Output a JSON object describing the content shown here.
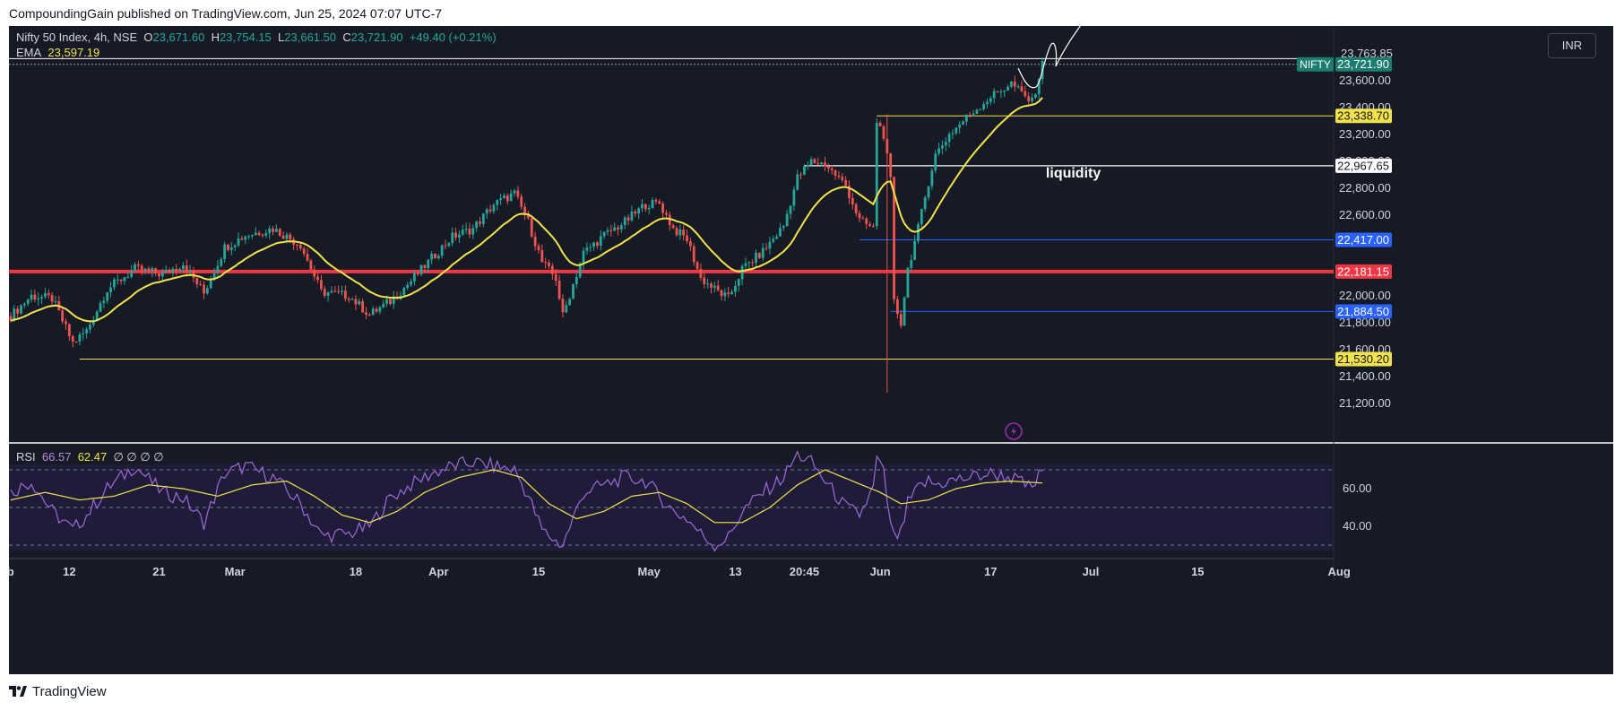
{
  "header": {
    "published": "CompoundingGain published on TradingView.com, Jun 25, 2024 07:07 UTC-7"
  },
  "legend": {
    "symbol": "Nifty 50 Index, 4h, NSE",
    "o_label": "O",
    "o_value": "23,671.60",
    "h_label": "H",
    "h_value": "23,754.15",
    "l_label": "L",
    "l_value": "23,661.50",
    "c_label": "C",
    "c_value": "23,721.90",
    "change": "+49.40 (+0.21%)",
    "ema_label": "EMA",
    "ema_value": "23,597.19"
  },
  "rsi_legend": {
    "label": "RSI",
    "rsi_value": "66.57",
    "ma_value": "62.47",
    "extra": "∅ ∅ ∅ ∅"
  },
  "currency": "INR",
  "footer": {
    "brand": "TradingView"
  },
  "colors": {
    "up": "#26a69a",
    "down": "#ef5350",
    "ema": "#f2e34c",
    "rsi": "#9c6ad8",
    "background": "#161a25",
    "key_line": "#f23645"
  },
  "chart_data": {
    "type": "candlestick",
    "title": "Nifty 50 Index, 4h, NSE",
    "ylim": [
      21100,
      23900
    ],
    "y_ticks": [
      21200,
      21400,
      21600,
      21800,
      22000,
      22200,
      22400,
      22600,
      22800,
      23000,
      23200,
      23400,
      23600
    ],
    "y_tick_labels": [
      "21,200.00",
      "21,400.00",
      "21,600.00",
      "21,800.00",
      "22,000.00",
      "22,200.00",
      "22,400.00",
      "22,600.00",
      "22,800.00",
      "23,000.00",
      "23,200.00",
      "23,400.00",
      "23,600.00"
    ],
    "top_partial_label": "23,763.85",
    "x_labels": [
      {
        "label": "eb",
        "bar": -1
      },
      {
        "label": "12",
        "bar": 17
      },
      {
        "label": "21",
        "bar": 43
      },
      {
        "label": "Mar",
        "bar": 65
      },
      {
        "label": "18",
        "bar": 100
      },
      {
        "label": "Apr",
        "bar": 124
      },
      {
        "label": "15",
        "bar": 153
      },
      {
        "label": "May",
        "bar": 185
      },
      {
        "label": "13",
        "bar": 210
      },
      {
        "label": "20:45",
        "bar": 230
      },
      {
        "label": "Jun",
        "bar": 252
      },
      {
        "label": "17",
        "bar": 284
      },
      {
        "label": "Jul",
        "bar": 313
      },
      {
        "label": "15",
        "bar": 344
      },
      {
        "label": "Aug",
        "bar": 385
      }
    ],
    "last_bar": 299,
    "horizontal_levels": [
      {
        "label": "23,721.90",
        "value": 23721.9,
        "tag": "NIFTY",
        "kind": "price",
        "start_bar": -1
      },
      {
        "label": "23,338.70",
        "value": 23338.7,
        "kind": "yellow",
        "start_bar": 251
      },
      {
        "label": "22,967.65",
        "value": 22967.65,
        "kind": "white",
        "start_bar": 230
      },
      {
        "label": "22,417.00",
        "value": 22417.0,
        "kind": "blue",
        "start_bar": 246
      },
      {
        "label": "22,181.15",
        "value": 22181.15,
        "kind": "red",
        "start_bar": -1
      },
      {
        "label": "21,884.50",
        "value": 21884.5,
        "kind": "blue",
        "start_bar": 255
      },
      {
        "label": "21,530.20",
        "value": 21530.2,
        "kind": "yellow",
        "start_bar": 20
      }
    ],
    "annotation": {
      "text": "liquidity",
      "bar": 300,
      "value": 22880
    },
    "path_keypoints": [
      [
        0,
        21850
      ],
      [
        6,
        22000
      ],
      [
        12,
        21980
      ],
      [
        18,
        21650
      ],
      [
        22,
        21740
      ],
      [
        28,
        22050
      ],
      [
        36,
        22200
      ],
      [
        44,
        22160
      ],
      [
        50,
        22240
      ],
      [
        56,
        22020
      ],
      [
        62,
        22360
      ],
      [
        68,
        22450
      ],
      [
        76,
        22500
      ],
      [
        84,
        22380
      ],
      [
        90,
        22030
      ],
      [
        98,
        22000
      ],
      [
        104,
        21860
      ],
      [
        110,
        21960
      ],
      [
        116,
        22110
      ],
      [
        122,
        22280
      ],
      [
        128,
        22440
      ],
      [
        134,
        22500
      ],
      [
        140,
        22680
      ],
      [
        146,
        22760
      ],
      [
        150,
        22550
      ],
      [
        154,
        22250
      ],
      [
        158,
        22130
      ],
      [
        160,
        21850
      ],
      [
        166,
        22320
      ],
      [
        172,
        22450
      ],
      [
        178,
        22550
      ],
      [
        184,
        22680
      ],
      [
        188,
        22690
      ],
      [
        192,
        22500
      ],
      [
        196,
        22420
      ],
      [
        200,
        22130
      ],
      [
        204,
        22050
      ],
      [
        208,
        21980
      ],
      [
        212,
        22200
      ],
      [
        218,
        22330
      ],
      [
        224,
        22520
      ],
      [
        228,
        22880
      ],
      [
        232,
        23000
      ],
      [
        236,
        22980
      ],
      [
        242,
        22820
      ],
      [
        246,
        22560
      ],
      [
        250,
        22500
      ],
      [
        251,
        23300
      ],
      [
        253,
        23200
      ],
      [
        255,
        22850
      ],
      [
        256,
        21950
      ],
      [
        258,
        21800
      ],
      [
        260,
        22200
      ],
      [
        263,
        22500
      ],
      [
        266,
        22850
      ],
      [
        268,
        23050
      ],
      [
        272,
        23200
      ],
      [
        278,
        23350
      ],
      [
        284,
        23480
      ],
      [
        290,
        23580
      ],
      [
        294,
        23480
      ],
      [
        296,
        23440
      ],
      [
        299,
        23720
      ]
    ],
    "wick_spikes": [
      {
        "bar": 254,
        "low": 21280,
        "high": 23350
      }
    ],
    "rsi": {
      "ylim": [
        20,
        80
      ],
      "upper": 70,
      "middle": 50,
      "lower": 30,
      "tick_labels": [
        "60.00",
        "40.00"
      ],
      "ticks": [
        60,
        40
      ],
      "rsi_keypoints": [
        [
          0,
          58
        ],
        [
          6,
          64
        ],
        [
          12,
          48
        ],
        [
          18,
          38
        ],
        [
          22,
          46
        ],
        [
          28,
          60
        ],
        [
          36,
          72
        ],
        [
          44,
          58
        ],
        [
          50,
          55
        ],
        [
          56,
          42
        ],
        [
          62,
          68
        ],
        [
          68,
          72
        ],
        [
          76,
          66
        ],
        [
          84,
          52
        ],
        [
          90,
          35
        ],
        [
          98,
          36
        ],
        [
          104,
          40
        ],
        [
          110,
          55
        ],
        [
          116,
          62
        ],
        [
          122,
          68
        ],
        [
          128,
          72
        ],
        [
          134,
          74
        ],
        [
          140,
          72
        ],
        [
          146,
          70
        ],
        [
          150,
          56
        ],
        [
          154,
          38
        ],
        [
          158,
          32
        ],
        [
          160,
          30
        ],
        [
          166,
          58
        ],
        [
          172,
          62
        ],
        [
          178,
          66
        ],
        [
          184,
          64
        ],
        [
          188,
          56
        ],
        [
          192,
          48
        ],
        [
          196,
          44
        ],
        [
          200,
          36
        ],
        [
          204,
          30
        ],
        [
          208,
          34
        ],
        [
          212,
          48
        ],
        [
          218,
          58
        ],
        [
          224,
          66
        ],
        [
          228,
          78
        ],
        [
          232,
          74
        ],
        [
          236,
          64
        ],
        [
          242,
          50
        ],
        [
          246,
          46
        ],
        [
          250,
          60
        ],
        [
          251,
          76
        ],
        [
          253,
          68
        ],
        [
          255,
          40
        ],
        [
          256,
          34
        ],
        [
          258,
          36
        ],
        [
          260,
          52
        ],
        [
          263,
          60
        ],
        [
          266,
          64
        ],
        [
          268,
          62
        ],
        [
          272,
          64
        ],
        [
          278,
          66
        ],
        [
          284,
          68
        ],
        [
          290,
          66
        ],
        [
          294,
          62
        ],
        [
          296,
          60
        ],
        [
          299,
          70
        ]
      ],
      "ma_keypoints": [
        [
          0,
          54
        ],
        [
          10,
          58
        ],
        [
          20,
          54
        ],
        [
          30,
          56
        ],
        [
          40,
          62
        ],
        [
          50,
          60
        ],
        [
          60,
          56
        ],
        [
          70,
          62
        ],
        [
          80,
          64
        ],
        [
          88,
          56
        ],
        [
          96,
          46
        ],
        [
          104,
          42
        ],
        [
          112,
          48
        ],
        [
          120,
          58
        ],
        [
          130,
          66
        ],
        [
          140,
          70
        ],
        [
          148,
          66
        ],
        [
          156,
          52
        ],
        [
          164,
          44
        ],
        [
          172,
          48
        ],
        [
          180,
          56
        ],
        [
          188,
          58
        ],
        [
          196,
          52
        ],
        [
          204,
          42
        ],
        [
          212,
          42
        ],
        [
          220,
          50
        ],
        [
          228,
          62
        ],
        [
          236,
          70
        ],
        [
          244,
          64
        ],
        [
          252,
          58
        ],
        [
          258,
          52
        ],
        [
          266,
          54
        ],
        [
          274,
          60
        ],
        [
          282,
          63
        ],
        [
          290,
          64
        ],
        [
          299,
          63
        ]
      ]
    }
  }
}
